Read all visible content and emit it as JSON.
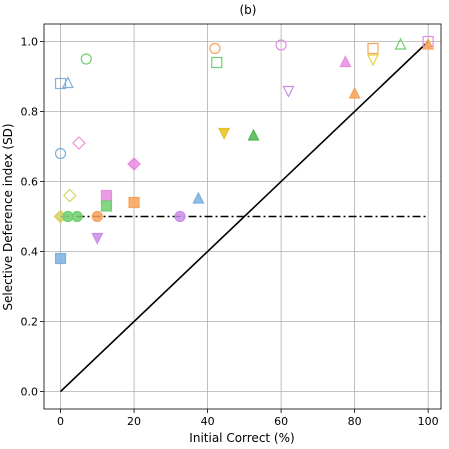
{
  "chart_data": {
    "type": "scatter",
    "title": "(b)",
    "xlabel": "Initial Correct (%)",
    "ylabel": "Selective Deference index (SD)",
    "xlim": [
      -4.5,
      103.5
    ],
    "ylim": [
      -0.05,
      1.05
    ],
    "xticks": [
      0,
      20,
      40,
      60,
      80,
      100
    ],
    "yticks": [
      0.0,
      0.2,
      0.4,
      0.6,
      0.8,
      1.0
    ],
    "xtick_labels": [
      "0",
      "20",
      "40",
      "60",
      "80",
      "100"
    ],
    "ytick_labels": [
      "0.0",
      "0.2",
      "0.4",
      "0.6",
      "0.8",
      "1.0"
    ],
    "grid": true,
    "lines": [
      {
        "style": "solid",
        "color": "#000000",
        "x": [
          0,
          100
        ],
        "y": [
          0,
          1
        ]
      },
      {
        "style": "dashdot",
        "color": "#000000",
        "x": [
          0,
          100
        ],
        "y": [
          0.5,
          0.5
        ]
      }
    ],
    "points": [
      {
        "x": 0,
        "y": 0.88,
        "shape": "square",
        "filled": false,
        "color": "#7cb0e0"
      },
      {
        "x": 2,
        "y": 0.88,
        "shape": "triangle-up",
        "filled": false,
        "color": "#7cb0e0"
      },
      {
        "x": 7,
        "y": 0.95,
        "shape": "circle",
        "filled": false,
        "color": "#6fcf6f"
      },
      {
        "x": 0,
        "y": 0.68,
        "shape": "circle",
        "filled": false,
        "color": "#7cb0e0"
      },
      {
        "x": 5,
        "y": 0.71,
        "shape": "diamond",
        "filled": false,
        "color": "#f08fd0"
      },
      {
        "x": 2.5,
        "y": 0.56,
        "shape": "diamond",
        "filled": false,
        "color": "#d6d060"
      },
      {
        "x": 0,
        "y": 0.5,
        "shape": "diamond",
        "filled": true,
        "color": "#d6d060"
      },
      {
        "x": 2,
        "y": 0.5,
        "shape": "circle",
        "filled": true,
        "color": "#6fcf6f"
      },
      {
        "x": 4.5,
        "y": 0.5,
        "shape": "circle",
        "filled": true,
        "color": "#6fcf6f"
      },
      {
        "x": 0,
        "y": 0.38,
        "shape": "square",
        "filled": true,
        "color": "#7cb0e0"
      },
      {
        "x": 10,
        "y": 0.5,
        "shape": "circle",
        "filled": true,
        "color": "#f7a25a"
      },
      {
        "x": 10,
        "y": 0.44,
        "shape": "triangle-down",
        "filled": true,
        "color": "#c98de6"
      },
      {
        "x": 12.5,
        "y": 0.56,
        "shape": "square",
        "filled": true,
        "color": "#e98be0"
      },
      {
        "x": 12.5,
        "y": 0.53,
        "shape": "square",
        "filled": true,
        "color": "#6fcf6f"
      },
      {
        "x": 20,
        "y": 0.65,
        "shape": "diamond",
        "filled": true,
        "color": "#e98be0"
      },
      {
        "x": 20,
        "y": 0.54,
        "shape": "square",
        "filled": true,
        "color": "#f7a25a"
      },
      {
        "x": 32.5,
        "y": 0.5,
        "shape": "circle",
        "filled": true,
        "color": "#c98de6"
      },
      {
        "x": 37.5,
        "y": 0.55,
        "shape": "triangle-up",
        "filled": true,
        "color": "#7cb0e0"
      },
      {
        "x": 42,
        "y": 0.98,
        "shape": "circle",
        "filled": false,
        "color": "#f7a25a"
      },
      {
        "x": 42.5,
        "y": 0.94,
        "shape": "square",
        "filled": false,
        "color": "#6fcf6f"
      },
      {
        "x": 44.5,
        "y": 0.74,
        "shape": "triangle-down",
        "filled": true,
        "color": "#e8c020"
      },
      {
        "x": 52.5,
        "y": 0.73,
        "shape": "triangle-up",
        "filled": true,
        "color": "#4fb84f"
      },
      {
        "x": 60,
        "y": 0.99,
        "shape": "circle",
        "filled": false,
        "color": "#e08fe6"
      },
      {
        "x": 62,
        "y": 0.86,
        "shape": "triangle-down",
        "filled": false,
        "color": "#c98de6"
      },
      {
        "x": 77.5,
        "y": 0.94,
        "shape": "triangle-up",
        "filled": true,
        "color": "#e98be0"
      },
      {
        "x": 80,
        "y": 0.85,
        "shape": "triangle-up",
        "filled": true,
        "color": "#f7a25a"
      },
      {
        "x": 85,
        "y": 0.98,
        "shape": "square",
        "filled": false,
        "color": "#f7a25a"
      },
      {
        "x": 85,
        "y": 0.95,
        "shape": "triangle-down",
        "filled": false,
        "color": "#e8d040"
      },
      {
        "x": 92.5,
        "y": 0.99,
        "shape": "triangle-up",
        "filled": false,
        "color": "#6fcf6f"
      },
      {
        "x": 100,
        "y": 1.0,
        "shape": "square",
        "filled": false,
        "color": "#e08fe6"
      },
      {
        "x": 100,
        "y": 0.99,
        "shape": "triangle-up",
        "filled": true,
        "color": "#f7a25a"
      }
    ]
  }
}
